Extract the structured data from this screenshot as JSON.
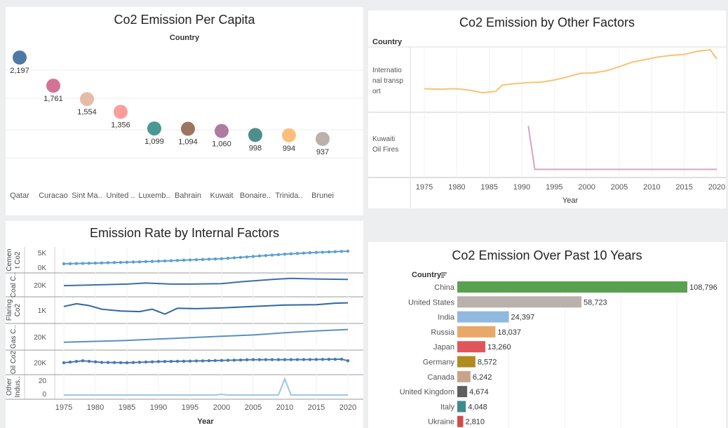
{
  "per_capita": {
    "title": "Co2 Emission Per Capita",
    "header": "Country",
    "countries": [
      "Qatar",
      "Curacao",
      "Sint Ma..",
      "United ..",
      "Luxemb..",
      "Bahrain",
      "Kuwait",
      "Bonaire..",
      "Trinida..",
      "Brunei"
    ],
    "values": [
      2197,
      1761,
      1554,
      1356,
      1099,
      1094,
      1060,
      998,
      994,
      937
    ],
    "value_labels": [
      "2,197",
      "1,761",
      "1,554",
      "1,356",
      "1,099",
      "1,094",
      "1,060",
      "998",
      "994",
      "937"
    ],
    "colors": [
      "#4e79a7",
      "#d37295",
      "#e6bca6",
      "#ff9d9a",
      "#499894",
      "#9c755f",
      "#b07aa1",
      "#4e8f8a",
      "#ffbe7d",
      "#bab0ac"
    ]
  },
  "other_factors": {
    "title": "Co2 Emission by Other Factors",
    "header": "Country",
    "rows": [
      {
        "label_lines": [
          "Internatio",
          "nal transp",
          "ort"
        ],
        "color": "#f8c274"
      },
      {
        "label_lines": [
          "Kuwaiti",
          "Oil Fires"
        ],
        "color": "#d8a3c6"
      }
    ],
    "x_ticks": [
      "1975",
      "1980",
      "1985",
      "1990",
      "1995",
      "2000",
      "2005",
      "2010",
      "2015",
      "2020"
    ],
    "xlabel": "Year"
  },
  "internal_factors": {
    "title": "Emission Rate by Internal Factors",
    "x_ticks": [
      "1975",
      "1980",
      "1985",
      "1990",
      "1995",
      "2000",
      "2005",
      "2010",
      "2015",
      "2020"
    ],
    "xlabel": "Year",
    "rows": [
      {
        "label_lines": [
          "Cemen",
          "t Co2"
        ],
        "ticks": [
          "5K",
          "0K"
        ]
      },
      {
        "label_lines": [
          "Coal C.."
        ],
        "ticks": [
          "20K"
        ]
      },
      {
        "label_lines": [
          "Flaring",
          "Co2"
        ],
        "ticks": [
          "1K"
        ]
      },
      {
        "label_lines": [
          "Gas C.."
        ],
        "ticks": [
          "20K"
        ]
      },
      {
        "label_lines": [
          "Oil Co2"
        ],
        "ticks": [
          "20K"
        ]
      },
      {
        "label_lines": [
          "Other",
          "Indus.."
        ],
        "ticks": [
          "20",
          "0"
        ]
      }
    ]
  },
  "past10": {
    "title": "Co2 Emission Over Past 10 Years",
    "header": "Country",
    "sort_icon": "sort-icon"
  },
  "chart_data": [
    {
      "type": "scatter",
      "title": "Co2 Emission Per Capita",
      "categories": [
        "Qatar",
        "Curacao",
        "Sint Ma..",
        "United ..",
        "Luxemb..",
        "Bahrain",
        "Kuwait",
        "Bonaire..",
        "Trinida..",
        "Brunei"
      ],
      "values": [
        2197,
        1761,
        1554,
        1356,
        1099,
        1094,
        1060,
        998,
        994,
        937
      ],
      "xlabel": "Country",
      "ylabel": ""
    },
    {
      "type": "line",
      "title": "Co2 Emission by Other Factors",
      "x": [
        1975,
        1980,
        1985,
        1990,
        1995,
        2000,
        2005,
        2010,
        2015,
        2020
      ],
      "xlabel": "Year",
      "series": [
        {
          "name": "International transport",
          "points": [
            [
              1975,
              0.35
            ],
            [
              1977,
              0.34
            ],
            [
              1980,
              0.35
            ],
            [
              1982,
              0.32
            ],
            [
              1984,
              0.27
            ],
            [
              1986,
              0.3
            ],
            [
              1987,
              0.42
            ],
            [
              1989,
              0.45
            ],
            [
              1991,
              0.47
            ],
            [
              1993,
              0.48
            ],
            [
              1995,
              0.52
            ],
            [
              1997,
              0.58
            ],
            [
              1999,
              0.65
            ],
            [
              2001,
              0.66
            ],
            [
              2003,
              0.7
            ],
            [
              2005,
              0.78
            ],
            [
              2007,
              0.87
            ],
            [
              2009,
              0.92
            ],
            [
              2011,
              0.97
            ],
            [
              2013,
              1.0
            ],
            [
              2015,
              1.02
            ],
            [
              2017,
              1.08
            ],
            [
              2019,
              1.11
            ],
            [
              2020,
              0.93
            ]
          ]
        },
        {
          "name": "Kuwaiti Oil Fires",
          "points": [
            [
              1991,
              0.9
            ],
            [
              1992,
              0.05
            ],
            [
              1995,
              0.05
            ],
            [
              2000,
              0.05
            ],
            [
              2005,
              0.05
            ],
            [
              2010,
              0.05
            ],
            [
              2015,
              0.05
            ],
            [
              2020,
              0.05
            ]
          ]
        }
      ]
    },
    {
      "type": "line",
      "title": "Emission Rate by Internal Factors",
      "x": [
        1975,
        1980,
        1985,
        1990,
        1995,
        2000,
        2005,
        2010,
        2015,
        2020
      ],
      "xlabel": "Year",
      "series": [
        {
          "name": "Cement Co2",
          "points": [
            [
              1975,
              0.28
            ],
            [
              1980,
              0.32
            ],
            [
              1985,
              0.37
            ],
            [
              1990,
              0.43
            ],
            [
              1995,
              0.5
            ],
            [
              2000,
              0.57
            ],
            [
              2005,
              0.7
            ],
            [
              2010,
              0.83
            ],
            [
              2015,
              0.93
            ],
            [
              2020,
              1.0
            ]
          ]
        },
        {
          "name": "Coal Co2",
          "points": [
            [
              1975,
              0.45
            ],
            [
              1980,
              0.5
            ],
            [
              1985,
              0.55
            ],
            [
              1988,
              0.62
            ],
            [
              1992,
              0.55
            ],
            [
              1995,
              0.55
            ],
            [
              2000,
              0.58
            ],
            [
              2003,
              0.7
            ],
            [
              2008,
              0.85
            ],
            [
              2011,
              0.92
            ],
            [
              2015,
              0.88
            ],
            [
              2020,
              0.85
            ]
          ]
        },
        {
          "name": "Flaring Co2",
          "points": [
            [
              1975,
              0.7
            ],
            [
              1977,
              0.85
            ],
            [
              1979,
              0.75
            ],
            [
              1981,
              0.55
            ],
            [
              1984,
              0.45
            ],
            [
              1987,
              0.42
            ],
            [
              1989,
              0.55
            ],
            [
              1991,
              0.28
            ],
            [
              1993,
              0.6
            ],
            [
              1996,
              0.58
            ],
            [
              2000,
              0.62
            ],
            [
              2005,
              0.7
            ],
            [
              2010,
              0.78
            ],
            [
              2015,
              0.8
            ],
            [
              2018,
              0.88
            ],
            [
              2020,
              0.9
            ]
          ]
        },
        {
          "name": "Gas Co2",
          "points": [
            [
              1975,
              0.2
            ],
            [
              1980,
              0.25
            ],
            [
              1985,
              0.3
            ],
            [
              1990,
              0.38
            ],
            [
              1995,
              0.45
            ],
            [
              2000,
              0.53
            ],
            [
              2005,
              0.6
            ],
            [
              2010,
              0.72
            ],
            [
              2015,
              0.82
            ],
            [
              2020,
              0.9
            ]
          ]
        },
        {
          "name": "Oil Co2",
          "points": [
            [
              1975,
              0.48
            ],
            [
              1978,
              0.6
            ],
            [
              1981,
              0.5
            ],
            [
              1985,
              0.48
            ],
            [
              1990,
              0.55
            ],
            [
              1995,
              0.58
            ],
            [
              2000,
              0.62
            ],
            [
              2005,
              0.67
            ],
            [
              2010,
              0.67
            ],
            [
              2015,
              0.68
            ],
            [
              2019,
              0.7
            ],
            [
              2020,
              0.6
            ]
          ]
        },
        {
          "name": "Other Indus..",
          "points": [
            [
              1975,
              0
            ],
            [
              1995,
              0
            ],
            [
              1999,
              0
            ],
            [
              2000,
              1
            ],
            [
              2001,
              0
            ],
            [
              2009,
              0
            ],
            [
              2010,
              24
            ],
            [
              2011,
              0
            ],
            [
              2020,
              0
            ]
          ]
        }
      ]
    },
    {
      "type": "bar",
      "title": "Co2 Emission Over Past 10 Years",
      "categories": [
        "China",
        "United States",
        "India",
        "Russia",
        "Japan",
        "Germany",
        "Canada",
        "United Kingdom",
        "Italy",
        "Ukraine"
      ],
      "values": [
        108796,
        58723,
        24397,
        18037,
        13260,
        8572,
        6242,
        4674,
        4048,
        2810
      ],
      "value_labels": [
        "108,796",
        "58,723",
        "24,397",
        "18,037",
        "13,260",
        "8,572",
        "6,242",
        "4,674",
        "4,048",
        "2,810"
      ],
      "colors": [
        "#59a14f",
        "#bab0ac",
        "#8fb9df",
        "#e8a868",
        "#e15759",
        "#b08b1f",
        "#c9a48d",
        "#5f5f5f",
        "#3f8b8a",
        "#d64a47"
      ],
      "ylabel": "Country"
    }
  ]
}
